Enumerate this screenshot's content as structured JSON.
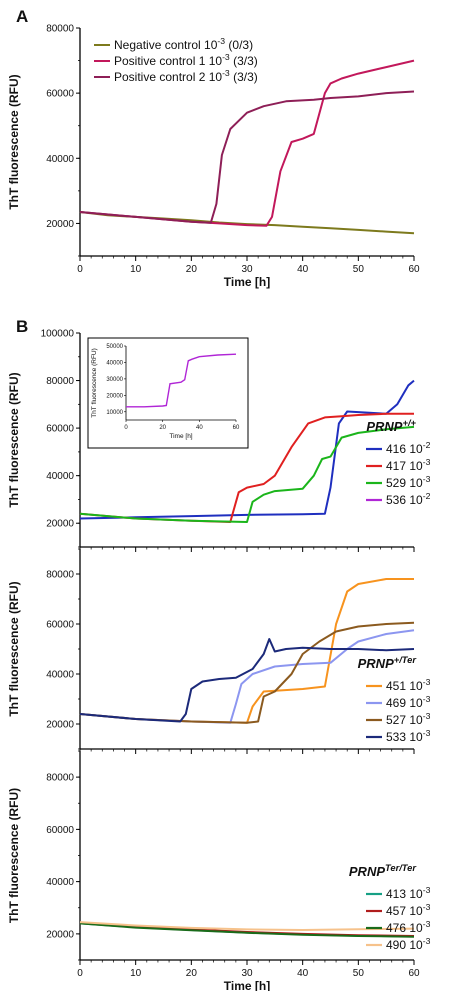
{
  "panel_labels": [
    "A",
    "B"
  ],
  "chart_data": [
    {
      "type": "line",
      "panel": "A",
      "xlabel": "Time [h]",
      "ylabel": "ThT fluorescence (RFU)",
      "xlim": [
        0,
        60
      ],
      "ylim": [
        10000,
        80000
      ],
      "xticks": [
        "0",
        "10",
        "20",
        "30",
        "40",
        "50",
        "60"
      ],
      "yticks": [
        "20000",
        "40000",
        "60000",
        "80000"
      ],
      "legend_position": "top-left",
      "series": [
        {
          "name": "Negative control 10-3 (0/3)",
          "legend": {
            "main": "Negative control 10",
            "sup": "-3",
            "rest": " (0/3)"
          },
          "color": "#7d7a1d",
          "x": [
            0,
            5,
            10,
            15,
            20,
            25,
            30,
            35,
            40,
            45,
            50,
            55,
            60
          ],
          "y": [
            23500,
            22500,
            22000,
            21500,
            21000,
            20300,
            19800,
            19500,
            19000,
            18500,
            18000,
            17500,
            17000
          ]
        },
        {
          "name": "Positive control 1 10-3 (3/3)",
          "legend": {
            "main": "Positive control 1 10",
            "sup": "-3",
            "rest": " (3/3)"
          },
          "color": "#c2185b",
          "x": [
            0,
            10,
            20,
            25,
            30,
            33.5,
            34.5,
            36,
            38,
            40,
            42,
            44,
            45,
            47,
            50,
            55,
            60
          ],
          "y": [
            23500,
            22000,
            20500,
            20000,
            19500,
            19300,
            22000,
            36000,
            45000,
            46000,
            47500,
            60000,
            63000,
            64500,
            66000,
            68000,
            70000
          ]
        },
        {
          "name": "Positive control 2 10-3 (3/3)",
          "legend": {
            "main": "Positive control 2 10",
            "sup": "-3",
            "rest": " (3/3)"
          },
          "color": "#8e1f57",
          "x": [
            0,
            10,
            20,
            23.5,
            24.5,
            25.5,
            27,
            30,
            33,
            37,
            42,
            45,
            50,
            55,
            60
          ],
          "y": [
            23500,
            22000,
            20500,
            20200,
            26000,
            41000,
            49000,
            54000,
            56000,
            57500,
            58000,
            58500,
            59000,
            60000,
            60500
          ]
        }
      ]
    },
    {
      "type": "line",
      "panel": "B-top",
      "ylabel": "ThT fluorescence (RFU)",
      "xlim": [
        0,
        60
      ],
      "ylim": [
        10000,
        100000
      ],
      "yticks": [
        "20000",
        "40000",
        "60000",
        "80000",
        "100000"
      ],
      "legend_title": {
        "main": "PRNP",
        "sup": "+/+"
      },
      "legend_position": "right",
      "series": [
        {
          "name": "416 10-2",
          "legend": {
            "main": "416 10",
            "sup": "-2"
          },
          "color": "#1f2fbf",
          "x": [
            0,
            10,
            20,
            30,
            40,
            44,
            45,
            46.5,
            48,
            52,
            55,
            57,
            59,
            60
          ],
          "y": [
            22000,
            22500,
            23000,
            23500,
            23800,
            24000,
            35000,
            62000,
            67000,
            66500,
            66000,
            70000,
            78000,
            80000
          ]
        },
        {
          "name": "417 10-3",
          "legend": {
            "main": "417 10",
            "sup": "-3"
          },
          "color": "#e02020",
          "x": [
            0,
            10,
            20,
            27,
            28.5,
            30,
            33,
            35,
            38,
            41,
            44,
            47,
            50,
            55,
            60
          ],
          "y": [
            24000,
            22000,
            21000,
            20500,
            33000,
            35000,
            36500,
            40000,
            52000,
            62000,
            64500,
            65000,
            65500,
            66000,
            66000
          ]
        },
        {
          "name": "529 10-3",
          "legend": {
            "main": "529 10",
            "sup": "-3"
          },
          "color": "#1bb51b",
          "x": [
            0,
            10,
            20,
            30,
            31,
            33,
            35,
            40,
            42,
            43.5,
            45,
            47,
            50,
            55,
            60
          ],
          "y": [
            24000,
            22000,
            21000,
            20500,
            29000,
            32000,
            33500,
            34500,
            40000,
            47000,
            48000,
            56000,
            58000,
            59500,
            60500
          ]
        },
        {
          "name": "536 10-2",
          "legend": {
            "main": "536 10",
            "sup": "-2"
          },
          "color": "#b026d6",
          "x": [],
          "y": []
        }
      ],
      "inset": {
        "type": "line",
        "xlabel": "Time [h]",
        "ylabel": "ThT fluorescence (RFU)",
        "xlim": [
          0,
          60
        ],
        "ylim": [
          5000,
          50000
        ],
        "xticks": [
          "0",
          "20",
          "40",
          "60"
        ],
        "yticks": [
          "10000",
          "20000",
          "30000",
          "40000",
          "50000"
        ],
        "color": "#b026d6",
        "x": [
          0,
          10,
          20,
          22,
          24,
          30,
          32,
          34,
          36,
          40,
          50,
          60
        ],
        "y": [
          13000,
          13000,
          13500,
          13800,
          27000,
          28000,
          29500,
          41000,
          42000,
          43500,
          44500,
          45000
        ]
      }
    },
    {
      "type": "line",
      "panel": "B-middle",
      "ylabel": "ThT fluorescence (RFU)",
      "xlim": [
        0,
        60
      ],
      "ylim": [
        10000,
        90000
      ],
      "yticks": [
        "20000",
        "40000",
        "60000",
        "80000"
      ],
      "legend_title": {
        "main": "PRNP",
        "sup": "+/Ter"
      },
      "legend_position": "right",
      "series": [
        {
          "name": "451 10-3",
          "legend": {
            "main": "451 10",
            "sup": "-3"
          },
          "color": "#f7931e",
          "x": [
            0,
            10,
            20,
            30,
            31,
            33,
            40,
            44,
            46,
            48,
            50,
            55,
            60
          ],
          "y": [
            24000,
            22000,
            21000,
            20500,
            27000,
            33000,
            34000,
            35000,
            60000,
            73000,
            76000,
            78000,
            78000
          ]
        },
        {
          "name": "469 10-3",
          "legend": {
            "main": "469 10",
            "sup": "-3"
          },
          "color": "#8c96f0",
          "x": [
            0,
            10,
            20,
            27,
            28,
            29,
            31,
            35,
            40,
            45,
            48,
            50,
            55,
            60
          ],
          "y": [
            24000,
            22000,
            21000,
            20500,
            28000,
            36000,
            40000,
            43000,
            44000,
            44500,
            50000,
            53000,
            56000,
            57500
          ]
        },
        {
          "name": "527 10-3",
          "legend": {
            "main": "527 10",
            "sup": "-3"
          },
          "color": "#8b5a1f",
          "x": [
            0,
            10,
            20,
            30,
            32,
            33,
            35,
            38,
            40,
            43,
            46,
            50,
            55,
            60
          ],
          "y": [
            24000,
            22000,
            21000,
            20500,
            21000,
            31000,
            33000,
            40000,
            48000,
            53000,
            57000,
            59000,
            60000,
            60500
          ]
        },
        {
          "name": "533 10-3",
          "legend": {
            "main": "533 10",
            "sup": "-3"
          },
          "color": "#1c2a7a",
          "x": [
            0,
            10,
            18,
            19,
            20,
            22,
            25,
            28,
            31,
            33,
            34,
            35,
            37,
            40,
            45,
            50,
            55,
            60
          ],
          "y": [
            24000,
            22000,
            21000,
            24000,
            34000,
            37000,
            38000,
            38500,
            42000,
            48000,
            54000,
            49000,
            50000,
            50500,
            50000,
            50000,
            49500,
            50000
          ]
        }
      ]
    },
    {
      "type": "line",
      "panel": "B-bottom",
      "xlabel": "Time [h]",
      "ylabel": "ThT fluorescence (RFU)",
      "xlim": [
        0,
        60
      ],
      "ylim": [
        10000,
        90000
      ],
      "xticks": [
        "0",
        "10",
        "20",
        "30",
        "40",
        "50",
        "60"
      ],
      "yticks": [
        "20000",
        "40000",
        "60000",
        "80000"
      ],
      "legend_title": {
        "main": "PRNP",
        "sup": "Ter/Ter"
      },
      "legend_position": "right",
      "series": [
        {
          "name": "413 10-3",
          "legend": {
            "main": "413 10",
            "sup": "-3"
          },
          "color": "#16a085",
          "x": [
            0,
            10,
            20,
            30,
            40,
            50,
            60
          ],
          "y": [
            24000,
            22500,
            21500,
            20500,
            19800,
            19300,
            19000
          ]
        },
        {
          "name": "457 10-3",
          "legend": {
            "main": "457 10",
            "sup": "-3"
          },
          "color": "#b01c1c",
          "x": [
            0,
            10,
            20,
            30,
            40,
            50,
            60
          ],
          "y": [
            24200,
            22700,
            21700,
            20700,
            20000,
            19500,
            19200
          ]
        },
        {
          "name": "476 10-3",
          "legend": {
            "main": "476 10",
            "sup": "-3"
          },
          "color": "#1a6b1a",
          "x": [
            0,
            10,
            20,
            30,
            40,
            50,
            60
          ],
          "y": [
            24000,
            22400,
            21400,
            20400,
            19700,
            19200,
            18900
          ]
        },
        {
          "name": "490 10-3",
          "legend": {
            "main": "490 10",
            "sup": "-3"
          },
          "color": "#f6c28b",
          "x": [
            0,
            10,
            20,
            30,
            40,
            50,
            60
          ],
          "y": [
            24500,
            23200,
            22300,
            21700,
            21500,
            21800,
            22000
          ]
        }
      ]
    }
  ]
}
